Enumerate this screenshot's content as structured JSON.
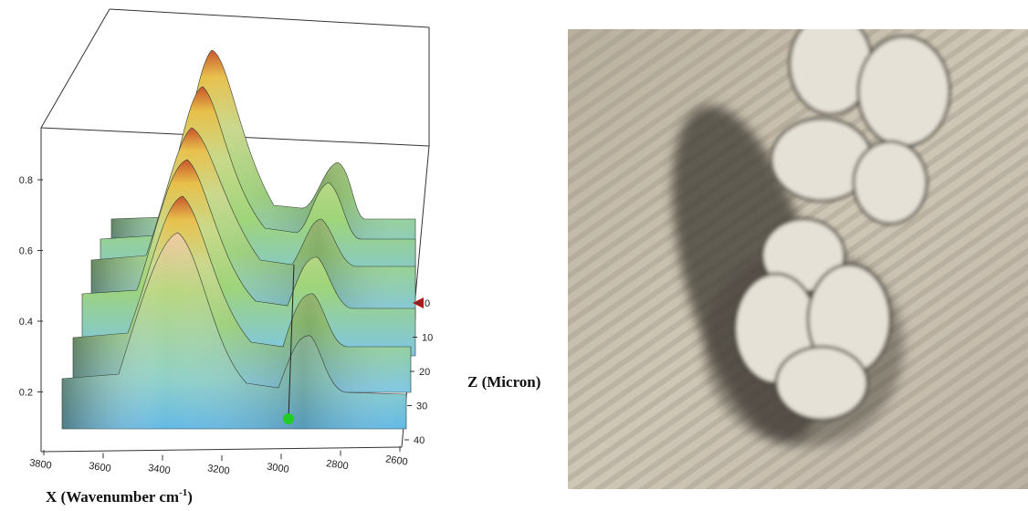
{
  "plot": {
    "intensity_ticks": [
      "0.8",
      "0.6",
      "0.4",
      "0.2"
    ],
    "wavenumber_ticks": [
      "3800",
      "3600",
      "3400",
      "3200",
      "3000",
      "2800",
      "2600"
    ],
    "depth_ticks": [
      "0",
      "10",
      "20",
      "30",
      "40"
    ],
    "x_axis_label": {
      "text": "X (Wavenumber cm",
      "sup": "-1",
      "close": ")"
    },
    "z_axis_label": "Z (Micron)"
  }
}
